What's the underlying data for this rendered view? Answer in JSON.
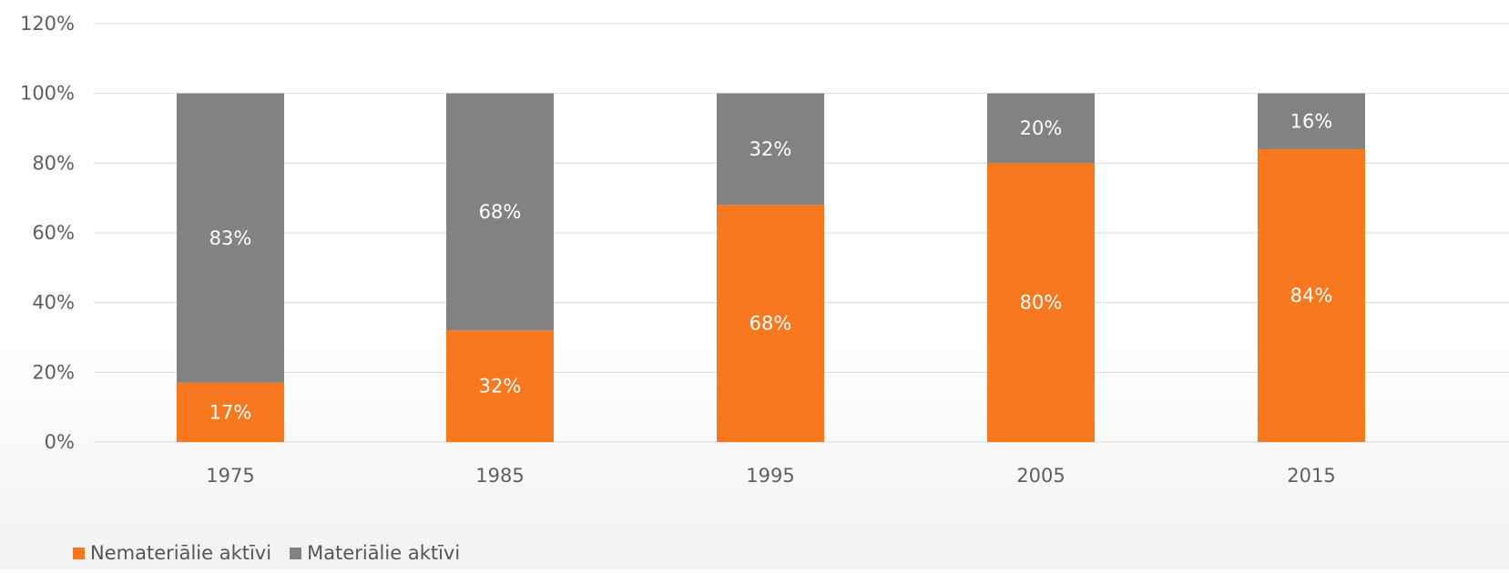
{
  "chart_data": {
    "type": "bar",
    "stacked": true,
    "categories": [
      "1975",
      "1985",
      "1995",
      "2005",
      "2015"
    ],
    "series": [
      {
        "name": "Nemateriālie aktīvi",
        "values": [
          17,
          32,
          68,
          80,
          84
        ],
        "labels": [
          "17%",
          "32%",
          "68%",
          "80%",
          "84%"
        ],
        "color": "#f7781e"
      },
      {
        "name": "Materiālie aktīvi",
        "values": [
          83,
          68,
          32,
          20,
          16
        ],
        "labels": [
          "83%",
          "68%",
          "32%",
          "20%",
          "16%"
        ],
        "color": "#828282"
      }
    ],
    "ylim": [
      0,
      120
    ],
    "yticks": [
      0,
      20,
      40,
      60,
      80,
      100,
      120
    ],
    "ytick_labels": [
      "0%",
      "20%",
      "40%",
      "60%",
      "80%",
      "100%",
      "120%"
    ],
    "grid": true,
    "legend_position": "bottom-left"
  }
}
